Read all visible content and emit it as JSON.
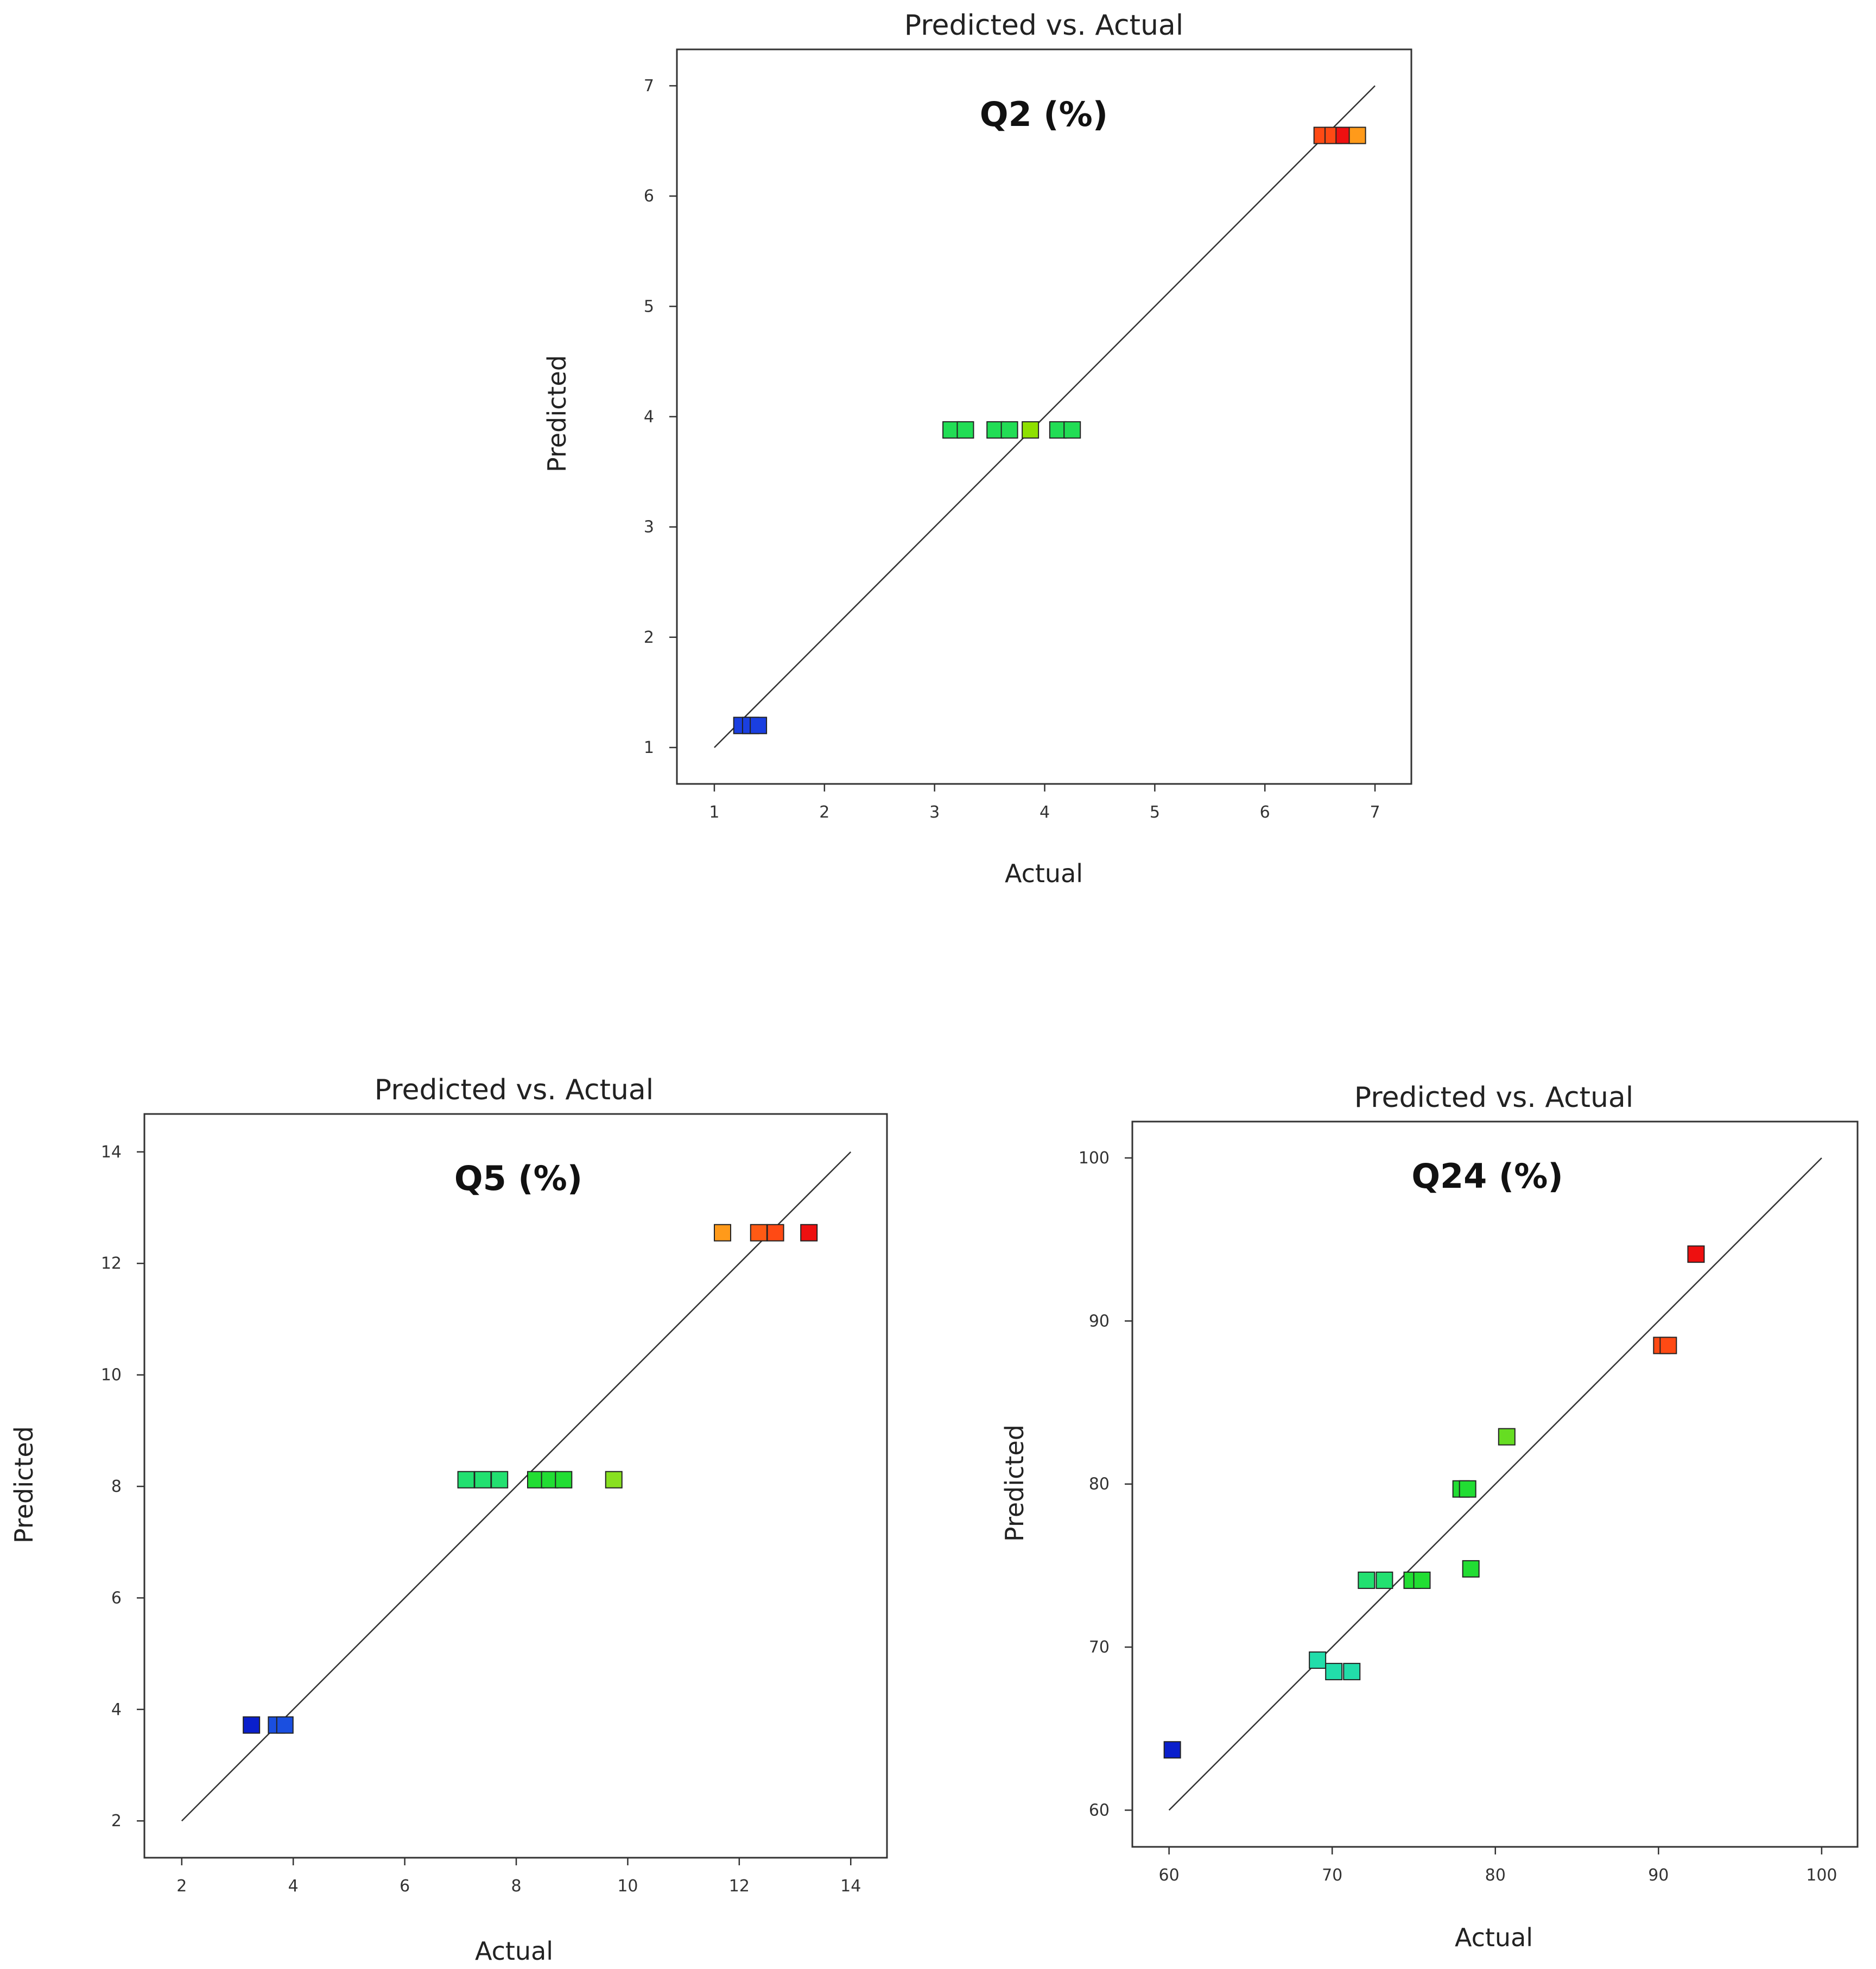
{
  "chart_data": [
    {
      "type": "scatter",
      "title": "Predicted vs. Actual",
      "panel_label": "Q2 (%)",
      "xlabel": "Actual",
      "ylabel": "Predicted",
      "xlim": [
        0.66,
        7.33
      ],
      "ylim": [
        0.67,
        7.33
      ],
      "xticks": [
        "1",
        "2",
        "3",
        "4",
        "5",
        "6",
        "7"
      ],
      "yticks": [
        "1",
        "2",
        "3",
        "4",
        "5",
        "6",
        "7"
      ],
      "reference_line": [
        [
          1,
          1
        ],
        [
          7,
          7
        ]
      ],
      "points": [
        {
          "x": 1.25,
          "y": 1.2,
          "color": "#1a3fe0"
        },
        {
          "x": 1.33,
          "y": 1.2,
          "color": "#1a3fe0"
        },
        {
          "x": 1.4,
          "y": 1.2,
          "color": "#1a3fe0"
        },
        {
          "x": 3.15,
          "y": 3.88,
          "color": "#22dd55"
        },
        {
          "x": 3.28,
          "y": 3.88,
          "color": "#22dd55"
        },
        {
          "x": 3.55,
          "y": 3.88,
          "color": "#22dd55"
        },
        {
          "x": 3.68,
          "y": 3.88,
          "color": "#22dd55"
        },
        {
          "x": 3.87,
          "y": 3.88,
          "color": "#8ee000"
        },
        {
          "x": 4.12,
          "y": 3.88,
          "color": "#22dd55"
        },
        {
          "x": 4.25,
          "y": 3.88,
          "color": "#22dd55"
        },
        {
          "x": 6.52,
          "y": 6.55,
          "color": "#ff4a14"
        },
        {
          "x": 6.62,
          "y": 6.55,
          "color": "#ff4a14"
        },
        {
          "x": 6.72,
          "y": 6.55,
          "color": "#ee1010"
        },
        {
          "x": 6.84,
          "y": 6.55,
          "color": "#ff9a1a"
        }
      ]
    },
    {
      "type": "scatter",
      "title": "Predicted vs. Actual",
      "panel_label": "Q5 (%)",
      "xlabel": "Actual",
      "ylabel": "Predicted",
      "xlim": [
        1.33,
        14.65
      ],
      "ylim": [
        1.34,
        14.68
      ],
      "xticks": [
        "2",
        "4",
        "6",
        "8",
        "10",
        "12",
        "14"
      ],
      "yticks": [
        "2",
        "4",
        "6",
        "8",
        "10",
        "12",
        "14"
      ],
      "reference_line": [
        [
          2,
          2
        ],
        [
          14,
          14
        ]
      ],
      "points": [
        {
          "x": 3.25,
          "y": 3.72,
          "color": "#0a1fcc"
        },
        {
          "x": 3.7,
          "y": 3.72,
          "color": "#1a4fe0"
        },
        {
          "x": 3.85,
          "y": 3.72,
          "color": "#1a4fe0"
        },
        {
          "x": 7.1,
          "y": 8.12,
          "color": "#22e070"
        },
        {
          "x": 7.4,
          "y": 8.12,
          "color": "#22e070"
        },
        {
          "x": 7.7,
          "y": 8.12,
          "color": "#22e070"
        },
        {
          "x": 8.35,
          "y": 8.12,
          "color": "#22dd33"
        },
        {
          "x": 8.6,
          "y": 8.12,
          "color": "#22dd33"
        },
        {
          "x": 8.85,
          "y": 8.12,
          "color": "#22dd33"
        },
        {
          "x": 9.75,
          "y": 8.12,
          "color": "#88e020"
        },
        {
          "x": 11.7,
          "y": 12.55,
          "color": "#ff9a1a"
        },
        {
          "x": 12.35,
          "y": 12.55,
          "color": "#ff5a14"
        },
        {
          "x": 12.65,
          "y": 12.55,
          "color": "#ff4a14"
        },
        {
          "x": 13.25,
          "y": 12.55,
          "color": "#ee1010"
        }
      ]
    },
    {
      "type": "scatter",
      "title": "Predicted vs. Actual",
      "panel_label": "Q24 (%)",
      "xlabel": "Actual",
      "ylabel": "Predicted",
      "xlim": [
        57.75,
        102.2
      ],
      "ylim": [
        57.75,
        102.23
      ],
      "xticks": [
        "60",
        "70",
        "80",
        "90",
        "100"
      ],
      "yticks": [
        "60",
        "70",
        "80",
        "90",
        "100"
      ],
      "reference_line": [
        [
          60,
          60
        ],
        [
          100,
          100
        ]
      ],
      "points": [
        {
          "x": 60.2,
          "y": 63.7,
          "color": "#0a1fcc"
        },
        {
          "x": 69.1,
          "y": 69.2,
          "color": "#22ddaa"
        },
        {
          "x": 70.1,
          "y": 68.5,
          "color": "#22ddaa"
        },
        {
          "x": 71.2,
          "y": 68.5,
          "color": "#22ddaa"
        },
        {
          "x": 72.1,
          "y": 74.1,
          "color": "#22e070"
        },
        {
          "x": 73.2,
          "y": 74.1,
          "color": "#22e070"
        },
        {
          "x": 74.9,
          "y": 74.1,
          "color": "#22dd33"
        },
        {
          "x": 75.5,
          "y": 74.1,
          "color": "#22dd33"
        },
        {
          "x": 77.9,
          "y": 79.7,
          "color": "#22dd33"
        },
        {
          "x": 78.3,
          "y": 79.7,
          "color": "#22dd33"
        },
        {
          "x": 78.5,
          "y": 74.8,
          "color": "#22dd33"
        },
        {
          "x": 80.7,
          "y": 82.9,
          "color": "#66dd22"
        },
        {
          "x": 90.2,
          "y": 88.5,
          "color": "#ff4a14"
        },
        {
          "x": 90.6,
          "y": 88.5,
          "color": "#ff4a14"
        },
        {
          "x": 92.3,
          "y": 94.1,
          "color": "#ee1010"
        }
      ]
    }
  ]
}
